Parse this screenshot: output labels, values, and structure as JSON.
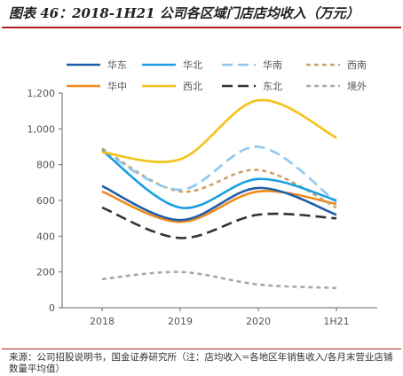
{
  "title": "图表 46：2018-1H21 公司各区域门店店均收入（万元）",
  "source": "来源：公司招股说明书，国金证券研究所（注：店均收入=各地区年销售收入/各月末营业店铺数量平均值）",
  "chart_data": {
    "type": "line",
    "categories": [
      "2018",
      "2019",
      "2020",
      "1H21"
    ],
    "ylim": [
      0,
      1200
    ],
    "yticks": [
      "0",
      "200",
      "400",
      "600",
      "800",
      "1,000",
      "1,200"
    ],
    "grid": false,
    "smooth": true,
    "legend_position": "top",
    "series": [
      {
        "name": "华东",
        "color": "#1f5fa8",
        "dash": "solid",
        "values": [
          680,
          490,
          670,
          520
        ]
      },
      {
        "name": "华北",
        "color": "#1aa0e0",
        "dash": "solid",
        "values": [
          880,
          560,
          720,
          600
        ]
      },
      {
        "name": "华南",
        "color": "#8ec8f0",
        "dash": "long",
        "values": [
          880,
          660,
          900,
          590
        ]
      },
      {
        "name": "西南",
        "color": "#c9a566",
        "dash": "short",
        "values": [
          890,
          650,
          770,
          560
        ]
      },
      {
        "name": "华中",
        "color": "#f08a1c",
        "dash": "solid",
        "values": [
          650,
          480,
          650,
          580
        ]
      },
      {
        "name": "西北",
        "color": "#f5c018",
        "dash": "solid",
        "values": [
          870,
          830,
          1160,
          950
        ]
      },
      {
        "name": "东北",
        "color": "#333333",
        "dash": "long",
        "values": [
          560,
          390,
          520,
          500
        ]
      },
      {
        "name": "境外",
        "color": "#a8a8a8",
        "dash": "short",
        "values": [
          160,
          200,
          130,
          110
        ]
      }
    ]
  }
}
